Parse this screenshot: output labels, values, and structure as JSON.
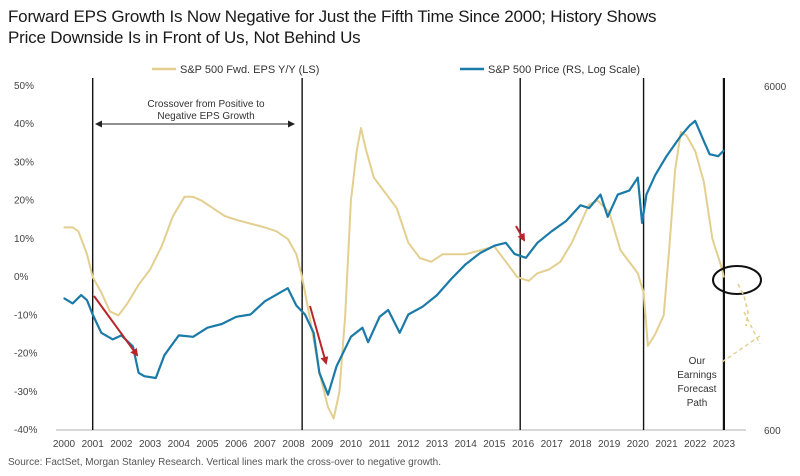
{
  "title_lines": [
    "Forward EPS Growth Is Now Negative for Just the Fifth Time Since 2000; History Shows",
    "Price Downside Is in Front of Us, Not Behind Us"
  ],
  "source": "Source: FactSet, Morgan Stanley Research. Vertical lines mark the cross-over to negative growth.",
  "annotations": {
    "crossover_line1": "Crossover from Positive to",
    "crossover_line2": "Negative EPS Growth",
    "forecast_lines": [
      "Our",
      "Earnings",
      "Forecast",
      "Path"
    ]
  },
  "colors": {
    "eps": "#e3cf8f",
    "price": "#1a7aa8",
    "arrow": "#b8262b",
    "forecast": "#e3cf8f"
  },
  "chart_data": {
    "type": "line",
    "legend_position": "top",
    "x_ticks": [
      "2000",
      "2001",
      "2002",
      "2003",
      "2004",
      "2005",
      "2006",
      "2007",
      "2008",
      "2009",
      "2010",
      "2011",
      "2012",
      "2013",
      "2014",
      "2015",
      "2016",
      "2017",
      "2018",
      "2019",
      "2020",
      "2021",
      "2022",
      "2023"
    ],
    "xlim": [
      2000,
      2023.7
    ],
    "y_left": {
      "ticks": [
        "50%",
        "40%",
        "30%",
        "20%",
        "10%",
        "0%",
        "-10%",
        "-20%",
        "-30%",
        "-40%"
      ],
      "lim": [
        -40,
        50
      ]
    },
    "y_right": {
      "ticks": [
        "6000",
        "600"
      ],
      "lim": [
        600,
        6000
      ],
      "scale": "log"
    },
    "crossover_lines": [
      2001.0,
      2008.3,
      2015.9,
      2020.2,
      2023.0
    ],
    "series": [
      {
        "name": "S&P 500 Fwd. EPS Y/Y (LS)",
        "axis": "left",
        "x": [
          2000.0,
          2000.3,
          2000.5,
          2000.8,
          2001.0,
          2001.3,
          2001.6,
          2001.9,
          2002.2,
          2002.6,
          2003.0,
          2003.4,
          2003.8,
          2004.2,
          2004.5,
          2004.8,
          2005.2,
          2005.6,
          2006.0,
          2006.5,
          2007.0,
          2007.4,
          2007.8,
          2008.1,
          2008.3,
          2008.6,
          2008.9,
          2009.2,
          2009.4,
          2009.6,
          2009.8,
          2010.0,
          2010.2,
          2010.35,
          2010.5,
          2010.8,
          2011.2,
          2011.6,
          2012.0,
          2012.4,
          2012.8,
          2013.2,
          2013.6,
          2014.0,
          2014.5,
          2015.0,
          2015.4,
          2015.8,
          2016.2,
          2016.5,
          2016.9,
          2017.3,
          2017.7,
          2018.0,
          2018.3,
          2018.6,
          2019.0,
          2019.4,
          2019.8,
          2020.0,
          2020.2,
          2020.35,
          2020.6,
          2020.9,
          2021.1,
          2021.3,
          2021.5,
          2021.7,
          2022.0,
          2022.3,
          2022.6,
          2022.9,
          2023.0
        ],
        "y": [
          13,
          13,
          12,
          6,
          0,
          -4,
          -9,
          -10,
          -7,
          -2,
          2,
          8,
          16,
          21,
          21,
          20,
          18,
          16,
          15,
          14,
          13,
          12,
          10,
          6,
          0,
          -12,
          -25,
          -34,
          -37,
          -30,
          -10,
          20,
          33,
          39,
          34,
          26,
          22,
          18,
          9,
          5,
          4,
          6,
          6,
          6,
          7,
          8,
          4,
          0,
          -1,
          1,
          2,
          4,
          9,
          14,
          19,
          20,
          17,
          7,
          3,
          1,
          -4,
          -18,
          -15,
          -10,
          8,
          28,
          38,
          37,
          33,
          25,
          10,
          3,
          0
        ]
      },
      {
        "name": "S&P 500 Price (RS, Log Scale)",
        "axis": "right",
        "x": [
          2000.0,
          2000.3,
          2000.6,
          2000.8,
          2001.0,
          2001.3,
          2001.7,
          2002.0,
          2002.4,
          2002.6,
          2002.8,
          2003.2,
          2003.5,
          2004.0,
          2004.5,
          2005.0,
          2005.5,
          2006.0,
          2006.5,
          2007.0,
          2007.5,
          2007.8,
          2008.1,
          2008.4,
          2008.7,
          2008.9,
          2009.2,
          2009.5,
          2010.0,
          2010.4,
          2010.6,
          2011.0,
          2011.3,
          2011.7,
          2012.0,
          2012.5,
          2013.0,
          2013.5,
          2014.0,
          2014.5,
          2015.0,
          2015.4,
          2015.7,
          2016.1,
          2016.5,
          2017.0,
          2017.5,
          2018.0,
          2018.3,
          2018.7,
          2018.95,
          2019.3,
          2019.7,
          2020.0,
          2020.15,
          2020.3,
          2020.6,
          2021.0,
          2021.5,
          2021.8,
          2022.0,
          2022.3,
          2022.5,
          2022.8,
          2023.0
        ],
        "y": [
          1450,
          1400,
          1480,
          1430,
          1300,
          1150,
          1100,
          1130,
          1050,
          880,
          860,
          850,
          990,
          1130,
          1120,
          1190,
          1220,
          1280,
          1300,
          1420,
          1500,
          1550,
          1380,
          1300,
          1150,
          880,
          760,
          920,
          1120,
          1190,
          1080,
          1280,
          1340,
          1150,
          1300,
          1370,
          1480,
          1650,
          1820,
          1960,
          2060,
          2100,
          1950,
          1900,
          2100,
          2270,
          2430,
          2700,
          2650,
          2900,
          2500,
          2900,
          2980,
          3250,
          2400,
          2900,
          3300,
          3750,
          4300,
          4600,
          4750,
          4150,
          3800,
          3750,
          3900
        ]
      }
    ]
  }
}
